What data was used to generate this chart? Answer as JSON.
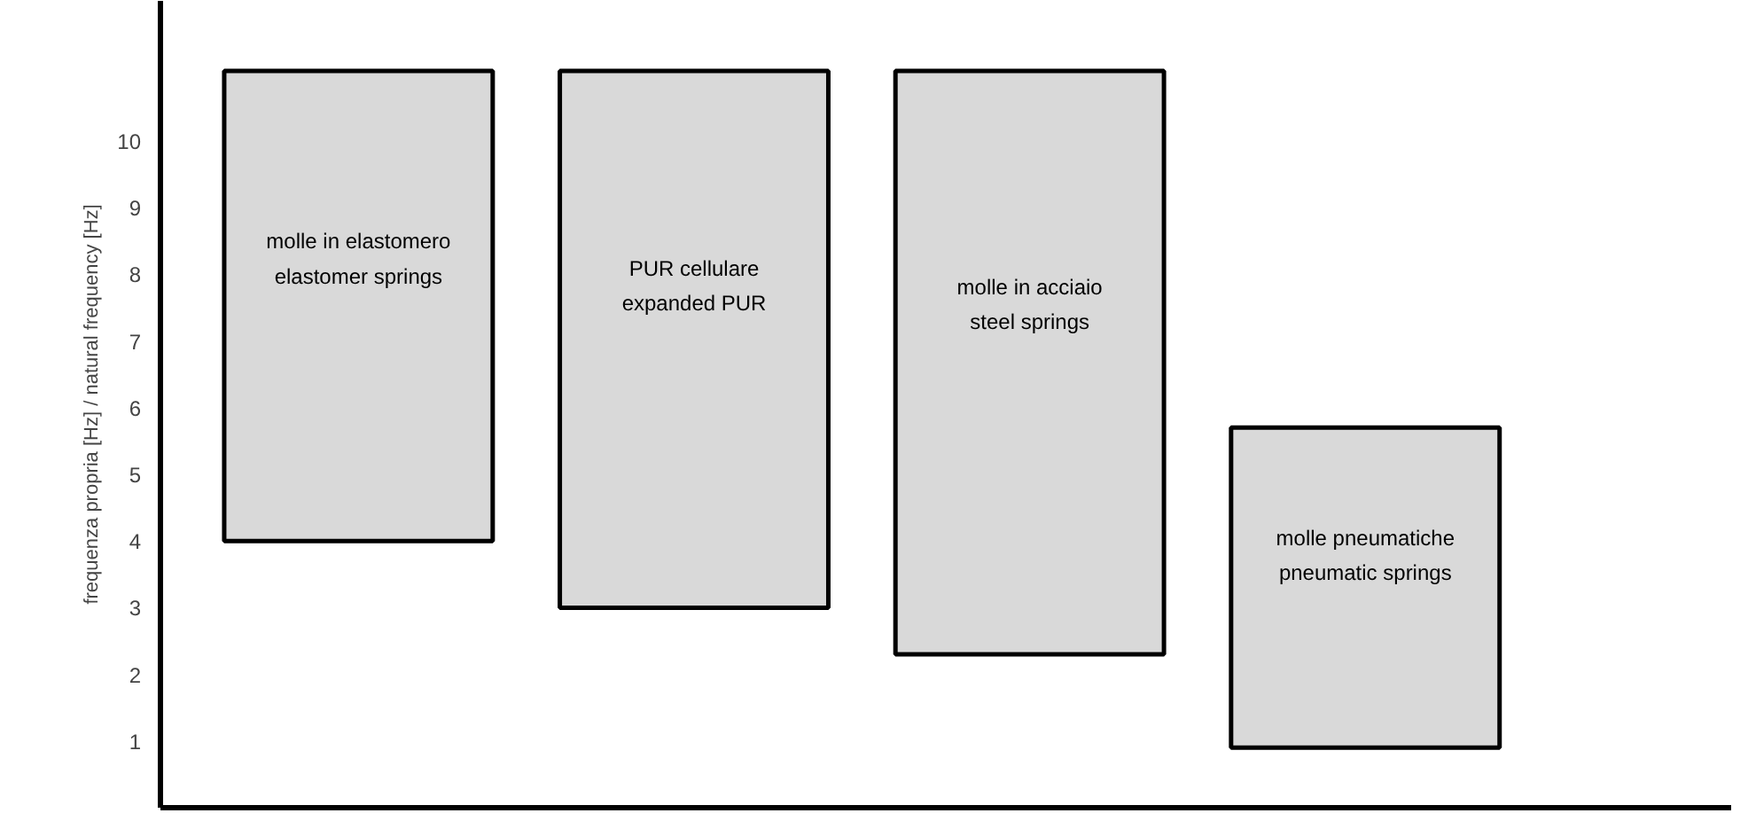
{
  "chart_data": {
    "type": "bar",
    "ylabel": "frequenza propria [Hz] / natural frequency [Hz]",
    "categories": [
      "molle in elastomero\nelastomer springs",
      "PUR cellulare\nexpanded PUR",
      "molle in acciaio\nsteel springs",
      "molle pneumatiche\npneumatic springs"
    ],
    "base": [
      4,
      3,
      2.3,
      0.9
    ],
    "values": [
      7.05,
      8.05,
      8.75,
      4.8
    ],
    "color": "#d9d9d9",
    "ylim": [
      0,
      12.1
    ],
    "yticks": [
      1,
      2,
      3,
      4,
      5,
      6,
      7,
      8,
      9,
      10
    ],
    "grid": false,
    "tick_labels": "y"
  }
}
